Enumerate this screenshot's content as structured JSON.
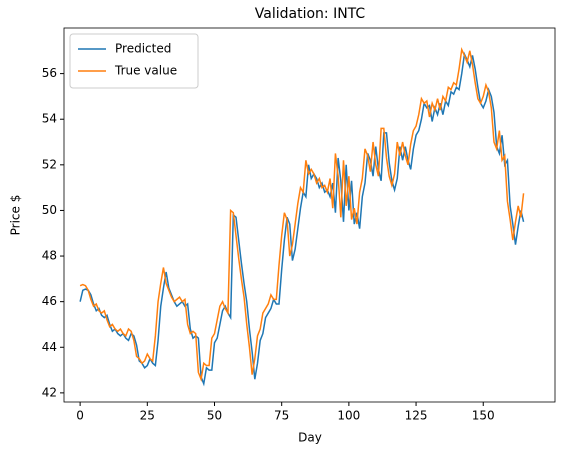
{
  "chart_data": {
    "type": "line",
    "title": "Validation: INTC",
    "xlabel": "Day",
    "ylabel": "Price $",
    "x": [
      0,
      1,
      2,
      3,
      4,
      5,
      6,
      7,
      8,
      9,
      10,
      11,
      12,
      13,
      14,
      15,
      16,
      17,
      18,
      19,
      20,
      21,
      22,
      23,
      24,
      25,
      26,
      27,
      28,
      29,
      30,
      31,
      32,
      33,
      34,
      35,
      36,
      37,
      38,
      39,
      40,
      41,
      42,
      43,
      44,
      45,
      46,
      47,
      48,
      49,
      50,
      51,
      52,
      53,
      54,
      55,
      56,
      57,
      58,
      59,
      60,
      61,
      62,
      63,
      64,
      65,
      66,
      67,
      68,
      69,
      70,
      71,
      72,
      73,
      74,
      75,
      76,
      77,
      78,
      79,
      80,
      81,
      82,
      83,
      84,
      85,
      86,
      87,
      88,
      89,
      90,
      91,
      92,
      93,
      94,
      95,
      96,
      97,
      98,
      99,
      100,
      101,
      102,
      103,
      104,
      105,
      106,
      107,
      108,
      109,
      110,
      111,
      112,
      113,
      114,
      115,
      116,
      117,
      118,
      119,
      120,
      121,
      122,
      123,
      124,
      125,
      126,
      127,
      128,
      129,
      130,
      131,
      132,
      133,
      134,
      135,
      136,
      137,
      138,
      139,
      140,
      141,
      142,
      143,
      144,
      145,
      146,
      147,
      148,
      149,
      150,
      151,
      152,
      153,
      154,
      155,
      156,
      157,
      158,
      159,
      160,
      161,
      162,
      163,
      164,
      165
    ],
    "series": [
      {
        "name": "Predicted",
        "color": "#1f77b4",
        "values": [
          46.0,
          46.5,
          46.55,
          46.5,
          46.3,
          45.9,
          45.6,
          45.7,
          45.4,
          45.3,
          45.4,
          45.0,
          44.7,
          44.8,
          44.6,
          44.5,
          44.6,
          44.4,
          44.3,
          44.6,
          44.5,
          44.1,
          43.4,
          43.3,
          43.1,
          43.2,
          43.5,
          43.3,
          43.2,
          44.3,
          45.8,
          46.6,
          47.3,
          46.6,
          46.3,
          46.0,
          45.8,
          45.9,
          46.0,
          45.8,
          45.9,
          44.8,
          44.4,
          44.5,
          44.4,
          42.7,
          42.4,
          43.1,
          43.0,
          43.0,
          44.2,
          44.4,
          45.0,
          45.6,
          45.8,
          45.5,
          45.3,
          49.8,
          49.7,
          48.7,
          47.7,
          46.8,
          46.0,
          44.8,
          43.8,
          42.6,
          43.3,
          44.3,
          44.6,
          45.3,
          45.5,
          45.7,
          46.1,
          45.9,
          45.9,
          47.4,
          48.7,
          49.7,
          49.4,
          47.8,
          48.3,
          49.2,
          50.1,
          50.8,
          50.6,
          52.0,
          51.4,
          51.6,
          51.4,
          51.0,
          51.2,
          50.8,
          50.9,
          50.6,
          51.2,
          49.9,
          52.3,
          51.3,
          49.5,
          52.0,
          50.0,
          51.3,
          49.4,
          49.9,
          49.2,
          50.6,
          51.2,
          52.5,
          52.2,
          51.5,
          52.8,
          51.8,
          51.3,
          53.4,
          53.4,
          52.1,
          51.3,
          50.9,
          51.4,
          52.8,
          52.2,
          52.8,
          52.2,
          51.8,
          52.7,
          53.3,
          53.5,
          54.0,
          54.7,
          54.5,
          54.6,
          53.9,
          54.5,
          54.2,
          54.7,
          54.2,
          54.8,
          54.6,
          55.2,
          55.1,
          55.4,
          55.3,
          56.0,
          56.85,
          56.6,
          56.3,
          56.8,
          56.2,
          55.4,
          54.7,
          54.5,
          54.8,
          55.3,
          55.0,
          54.3,
          52.8,
          52.5,
          53.3,
          52.0,
          52.2,
          50.2,
          49.4,
          48.5,
          49.3,
          50.0,
          49.5
        ]
      },
      {
        "name": "True value",
        "color": "#ff7f0e",
        "values": [
          46.7,
          46.75,
          46.7,
          46.5,
          46.1,
          45.8,
          45.9,
          45.6,
          45.5,
          45.6,
          45.2,
          44.9,
          45.0,
          44.8,
          44.7,
          44.8,
          44.6,
          44.5,
          44.8,
          44.7,
          44.3,
          43.6,
          43.5,
          43.3,
          43.4,
          43.7,
          43.5,
          43.4,
          44.5,
          46.0,
          46.8,
          47.5,
          46.8,
          46.5,
          46.2,
          46.0,
          46.1,
          46.2,
          46.0,
          46.1,
          45.0,
          44.6,
          44.7,
          44.6,
          42.9,
          42.6,
          43.3,
          43.2,
          43.2,
          44.4,
          44.6,
          45.2,
          45.8,
          46.0,
          45.7,
          45.5,
          50.0,
          49.9,
          48.9,
          47.9,
          47.0,
          46.2,
          45.0,
          44.0,
          42.8,
          43.5,
          44.5,
          44.8,
          45.5,
          45.7,
          45.9,
          46.3,
          46.1,
          46.1,
          47.6,
          48.9,
          49.9,
          49.6,
          48.0,
          48.5,
          49.4,
          50.3,
          51.0,
          50.8,
          52.2,
          51.6,
          51.8,
          51.6,
          51.2,
          51.4,
          51.0,
          51.1,
          50.8,
          51.4,
          50.1,
          52.5,
          51.5,
          49.7,
          52.2,
          50.2,
          51.5,
          49.6,
          50.1,
          49.4,
          50.8,
          51.4,
          52.7,
          52.4,
          51.7,
          53.0,
          52.0,
          51.5,
          53.6,
          53.6,
          52.3,
          51.5,
          51.1,
          51.6,
          53.0,
          52.4,
          53.0,
          52.4,
          52.0,
          52.9,
          53.5,
          53.7,
          54.2,
          54.9,
          54.7,
          54.8,
          54.1,
          54.7,
          54.4,
          54.9,
          54.4,
          55.0,
          54.8,
          55.4,
          55.3,
          55.6,
          55.5,
          56.2,
          57.05,
          56.8,
          56.5,
          57.0,
          56.4,
          55.6,
          54.9,
          54.7,
          55.0,
          55.5,
          55.2,
          54.5,
          53.0,
          52.7,
          53.5,
          52.2,
          52.4,
          50.4,
          49.6,
          48.7,
          49.5,
          50.2,
          49.7,
          50.75
        ]
      }
    ],
    "xlim": [
      -6,
      176.7
    ],
    "xticks": [
      0,
      25,
      50,
      75,
      100,
      125,
      150
    ],
    "ylim": [
      41.6,
      58.0
    ],
    "yticks": [
      42,
      44,
      46,
      48,
      50,
      52,
      54,
      56
    ],
    "legend": "upper left",
    "grid": false
  }
}
